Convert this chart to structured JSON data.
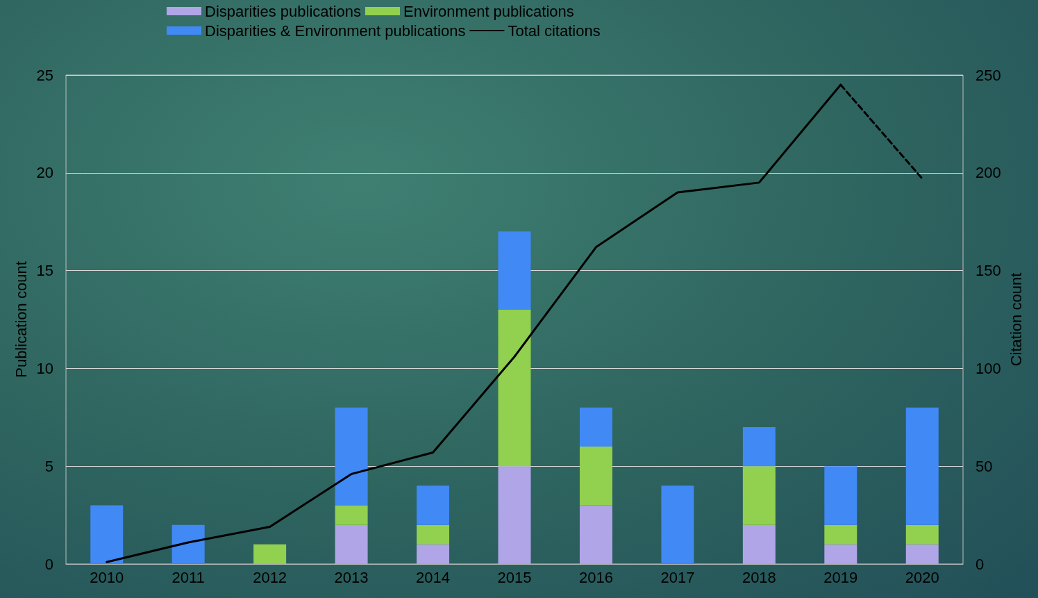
{
  "chart_data": {
    "type": "bar",
    "stacked": true,
    "categories": [
      "2010",
      "2011",
      "2012",
      "2013",
      "2014",
      "2015",
      "2016",
      "2017",
      "2018",
      "2019",
      "2020"
    ],
    "series": [
      {
        "name": "Disparities publications",
        "color": "#b0a5e6",
        "values": [
          0,
          0,
          0,
          2,
          1,
          5,
          3,
          0,
          2,
          1,
          1
        ]
      },
      {
        "name": "Environment publications",
        "color": "#92d050",
        "values": [
          0,
          0,
          1,
          1,
          1,
          8,
          3,
          0,
          3,
          1,
          1
        ]
      },
      {
        "name": "Disparities & Environment publications",
        "color": "#4189f5",
        "values": [
          3,
          2,
          0,
          5,
          2,
          4,
          2,
          4,
          2,
          3,
          6
        ]
      },
      {
        "name": "Total citations",
        "type": "line",
        "axis": "y2",
        "color": "#000000",
        "line_style": "solid",
        "values": [
          1,
          11,
          19,
          46,
          57,
          106,
          162,
          190,
          195,
          245,
          null
        ]
      },
      {
        "type": "line",
        "axis": "y2",
        "color": "#000000",
        "line_style": "dashed",
        "values": [
          null,
          null,
          null,
          null,
          null,
          null,
          null,
          null,
          null,
          245,
          197
        ]
      }
    ],
    "ylabel": "Publication count",
    "y2label": "Citation count",
    "ylim": [
      0,
      25
    ],
    "yticks": [
      0,
      5,
      10,
      15,
      20,
      25
    ],
    "y2lim": [
      0,
      250
    ],
    "y2ticks": [
      0,
      50,
      100,
      150,
      200,
      250
    ],
    "grid": "y",
    "legend": "top",
    "marker": "none"
  }
}
